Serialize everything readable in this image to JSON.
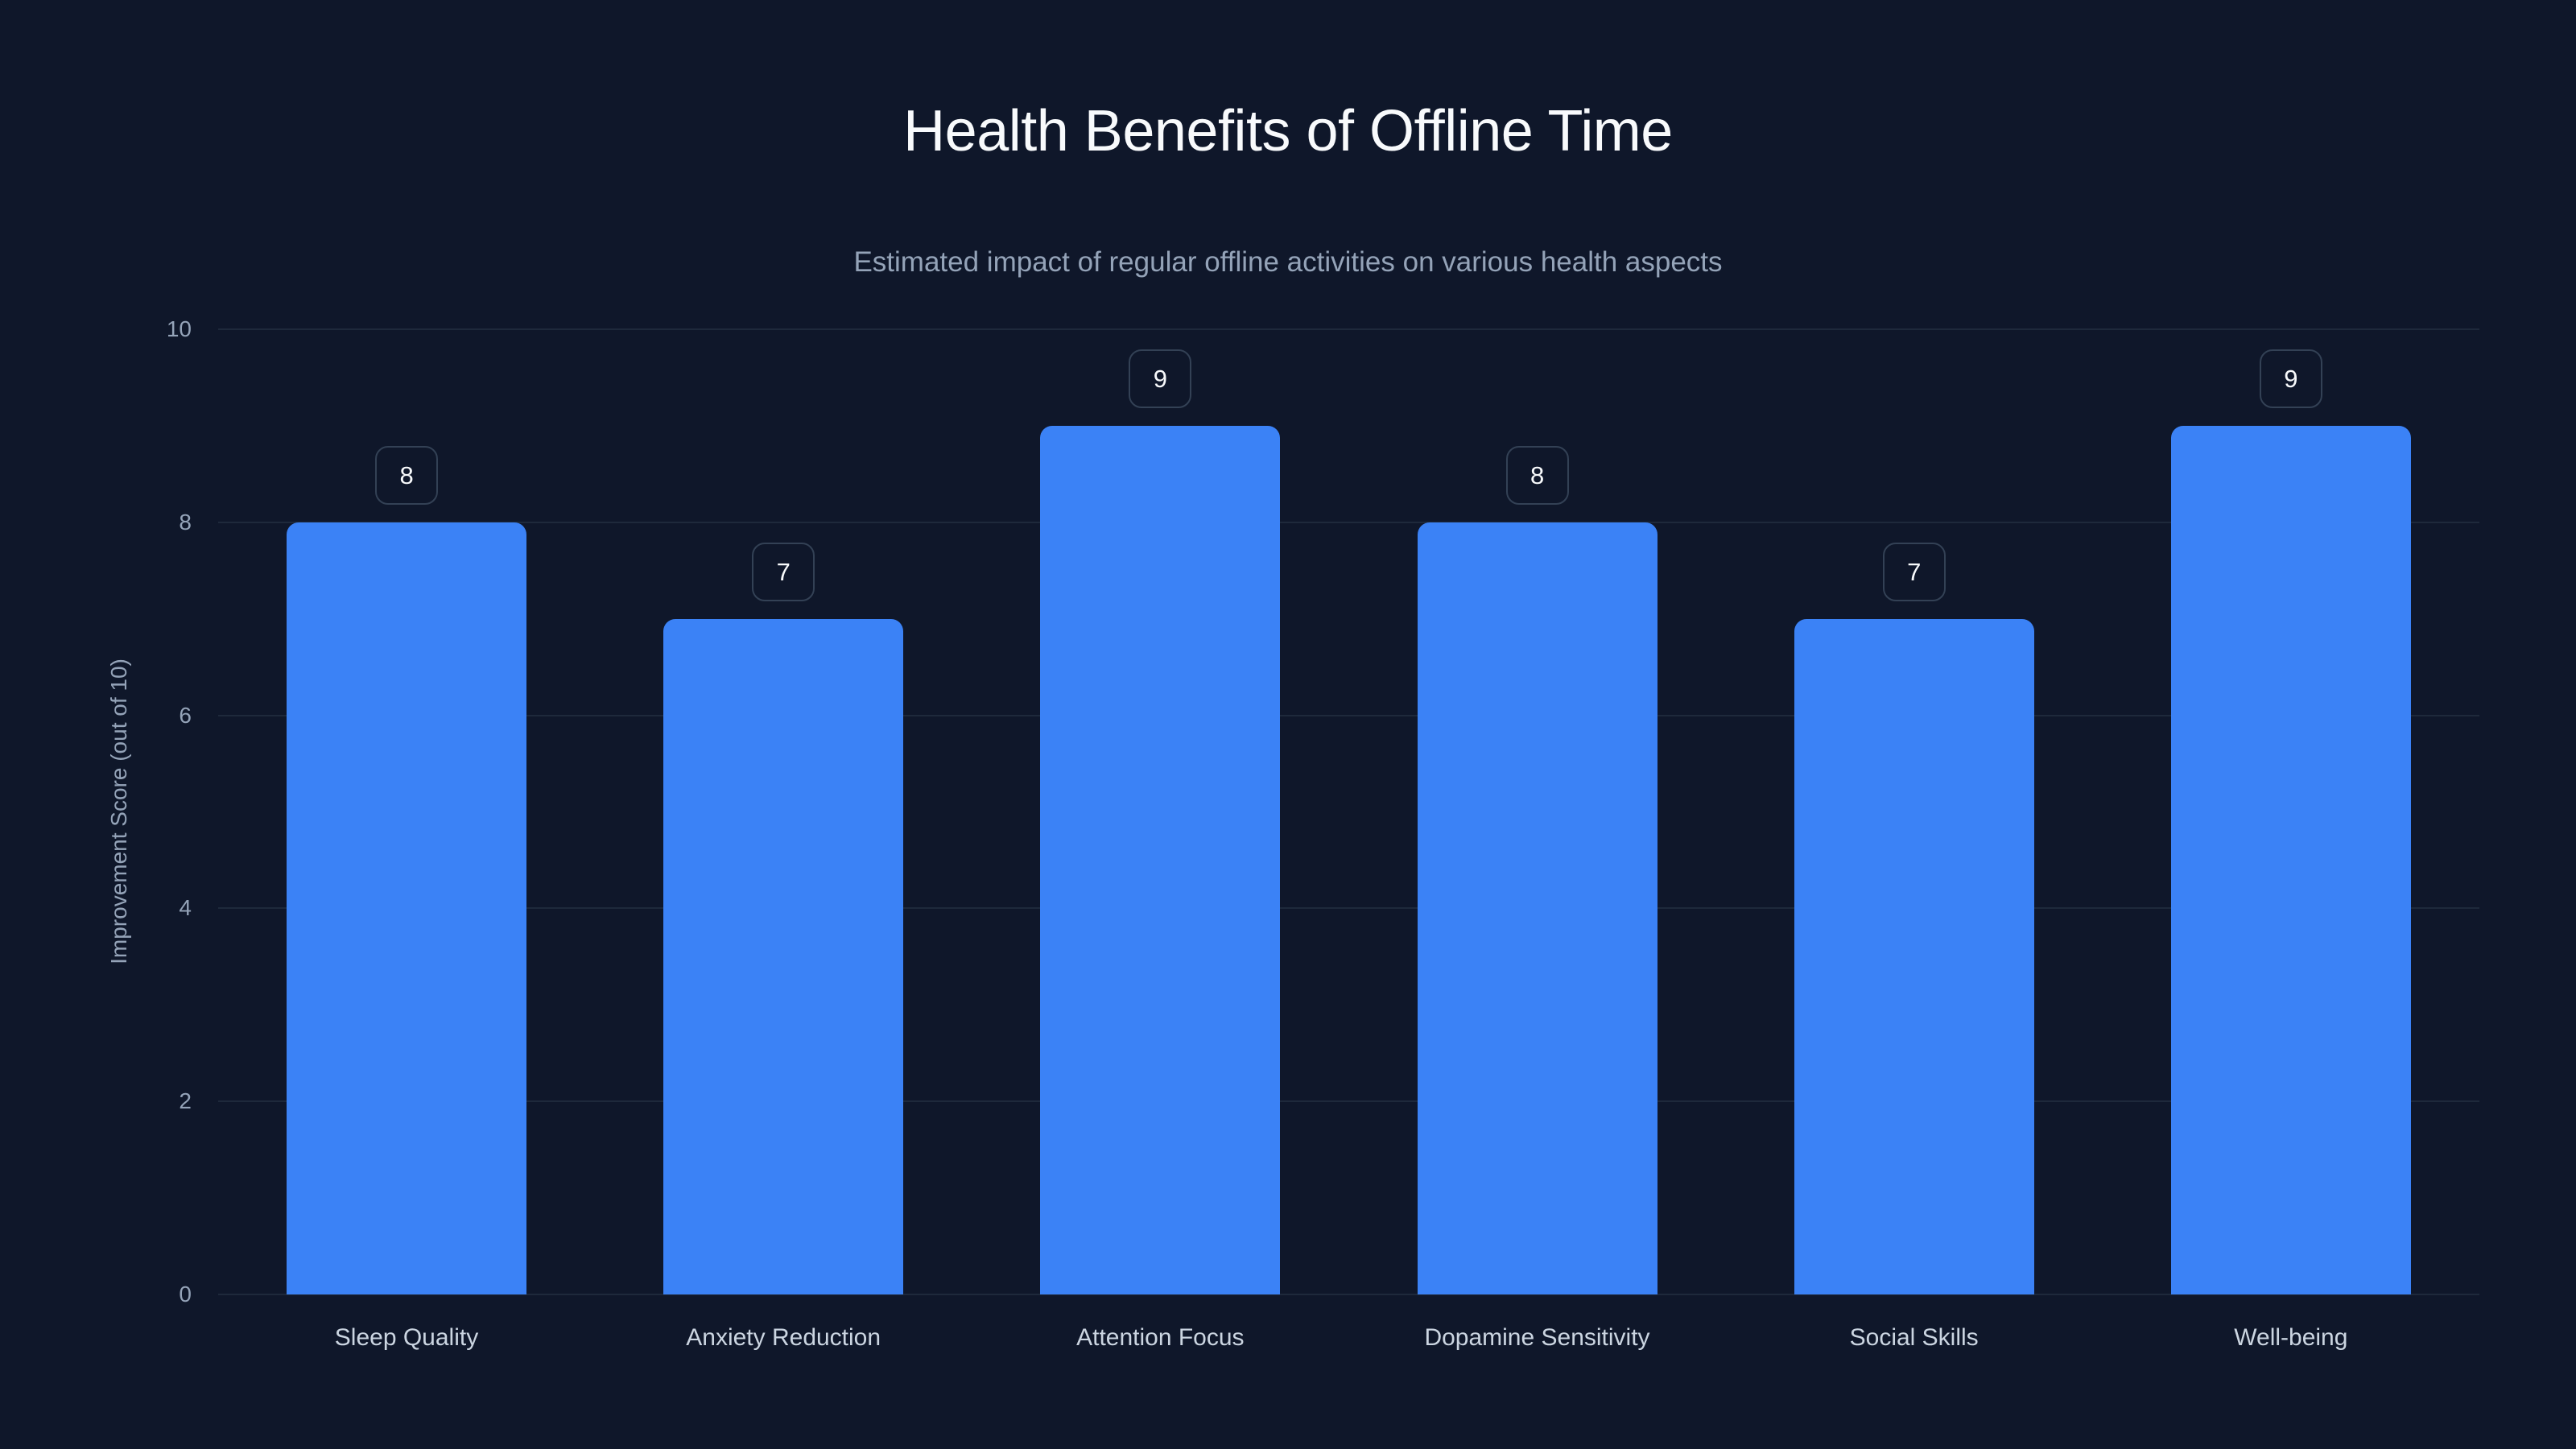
{
  "header": {
    "title": "Health Benefits of Offline Time",
    "subtitle": "Estimated impact of regular offline activities on various health aspects"
  },
  "colors": {
    "background": "#0f172a",
    "bar": "#3b82f6",
    "grid": "#1e293b",
    "label_border": "#334155",
    "title": "#f8fafc",
    "muted": "#94a3b8"
  },
  "axis": {
    "y_title": "Improvement Score (out of 10)",
    "y_ticks": [
      "0",
      "2",
      "4",
      "6",
      "8",
      "10"
    ]
  },
  "chart_data": {
    "type": "bar",
    "title": "Health Benefits of Offline Time",
    "subtitle": "Estimated impact of regular offline activities on various health aspects",
    "categories": [
      "Sleep Quality",
      "Anxiety Reduction",
      "Attention Focus",
      "Dopamine Sensitivity",
      "Social Skills",
      "Well-being"
    ],
    "values": [
      8,
      7,
      9,
      8,
      7,
      9
    ],
    "xlabel": "",
    "ylabel": "Improvement Score (out of 10)",
    "ylim": [
      0,
      10
    ],
    "yticks": [
      0,
      2,
      4,
      6,
      8,
      10
    ],
    "grid": true,
    "legend": null,
    "data_labels": true
  }
}
